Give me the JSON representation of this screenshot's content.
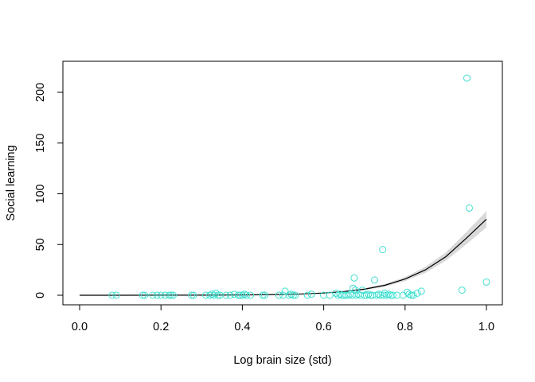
{
  "chart_data": {
    "type": "scatter",
    "title": "",
    "xlabel": "Log brain size (std)",
    "ylabel": "Social learning",
    "xlim": [
      0.0,
      1.0
    ],
    "ylim": [
      0,
      220
    ],
    "x_ticks": [
      "0.0",
      "0.2",
      "0.4",
      "0.6",
      "0.8",
      "1.0"
    ],
    "y_ticks": [
      "0",
      "50",
      "100",
      "150",
      "200"
    ],
    "grid": false,
    "point_color": "#40E0D0",
    "line_color": "#000000",
    "band_color": "#D9D9D9",
    "points": {
      "x": [
        0.08,
        0.09,
        0.155,
        0.16,
        0.18,
        0.19,
        0.2,
        0.21,
        0.22,
        0.225,
        0.23,
        0.275,
        0.28,
        0.31,
        0.32,
        0.325,
        0.33,
        0.335,
        0.34,
        0.345,
        0.36,
        0.37,
        0.38,
        0.39,
        0.395,
        0.4,
        0.405,
        0.41,
        0.42,
        0.45,
        0.455,
        0.49,
        0.5,
        0.505,
        0.515,
        0.52,
        0.525,
        0.53,
        0.56,
        0.57,
        0.6,
        0.615,
        0.63,
        0.635,
        0.64,
        0.645,
        0.65,
        0.655,
        0.66,
        0.665,
        0.67,
        0.672,
        0.675,
        0.678,
        0.68,
        0.685,
        0.69,
        0.695,
        0.7,
        0.705,
        0.71,
        0.715,
        0.72,
        0.725,
        0.73,
        0.735,
        0.74,
        0.745,
        0.748,
        0.75,
        0.755,
        0.76,
        0.765,
        0.77,
        0.78,
        0.795,
        0.805,
        0.81,
        0.815,
        0.82,
        0.83,
        0.84,
        0.94,
        0.952,
        0.958,
        1.0
      ],
      "y": [
        0,
        0,
        0,
        0,
        0,
        0,
        0,
        0,
        0,
        0,
        0,
        0,
        0,
        0,
        0,
        1,
        0,
        2,
        0,
        0,
        0,
        0,
        1,
        0,
        0,
        0,
        1,
        0,
        0,
        0,
        0,
        0,
        0,
        4,
        0,
        1,
        0,
        0,
        0,
        1,
        0,
        0,
        2,
        0,
        1,
        0,
        0,
        0,
        0,
        1,
        0,
        7,
        17,
        5,
        0,
        1,
        0,
        5,
        0,
        0,
        1,
        0,
        0,
        15,
        0,
        1,
        0,
        45,
        0,
        2,
        0,
        1,
        0,
        0,
        0,
        0,
        3,
        1,
        0,
        0,
        2,
        4,
        5,
        214,
        86,
        13
      ]
    },
    "fit": {
      "x": [
        0.0,
        0.1,
        0.2,
        0.3,
        0.4,
        0.5,
        0.55,
        0.6,
        0.65,
        0.7,
        0.75,
        0.8,
        0.85,
        0.9,
        0.95,
        1.0
      ],
      "y": [
        0.0,
        0.02,
        0.05,
        0.1,
        0.3,
        0.8,
        1.3,
        2.2,
        3.6,
        6.0,
        9.8,
        16.0,
        25.0,
        38.0,
        56.0,
        75.0
      ],
      "lower": [
        0.0,
        0.01,
        0.03,
        0.07,
        0.2,
        0.6,
        1.0,
        1.8,
        3.0,
        5.0,
        8.4,
        14.0,
        22.0,
        34.0,
        50.0,
        67.0
      ],
      "upper": [
        0.0,
        0.03,
        0.07,
        0.13,
        0.4,
        1.0,
        1.6,
        2.6,
        4.2,
        7.0,
        11.2,
        18.0,
        28.0,
        42.0,
        62.0,
        83.0
      ]
    }
  }
}
